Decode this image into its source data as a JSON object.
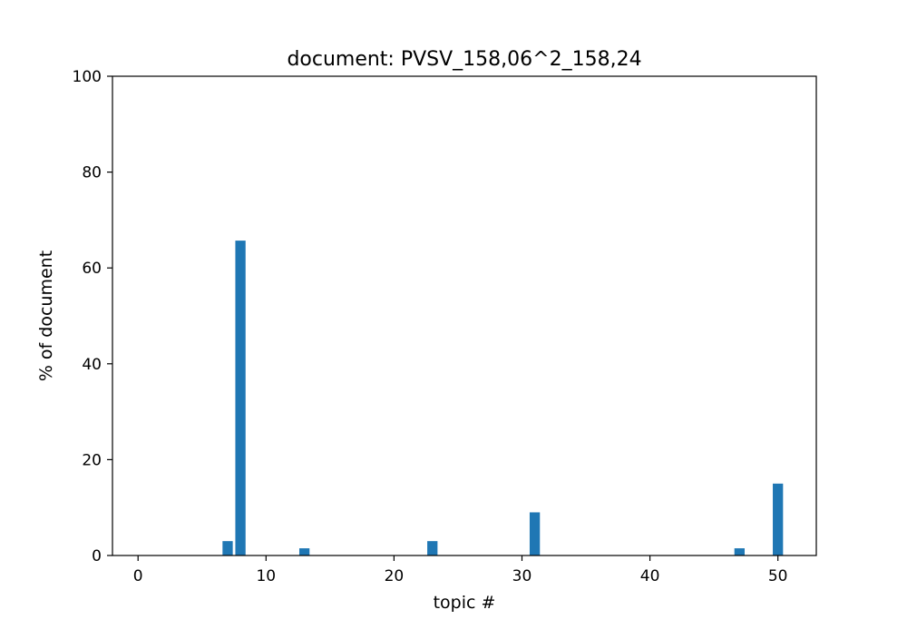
{
  "chart_data": {
    "type": "bar",
    "title": "document: PVSV_158,06^2_158,24",
    "xlabel": "topic #",
    "ylabel": "% of document",
    "xlim": [
      -2,
      53
    ],
    "ylim": [
      0,
      100
    ],
    "xticks": [
      0,
      10,
      20,
      30,
      40,
      50
    ],
    "yticks": [
      0,
      20,
      40,
      60,
      80,
      100
    ],
    "bar_color": "#1f77b4",
    "grid": false,
    "legend": "none",
    "x": [
      0,
      1,
      2,
      3,
      4,
      5,
      6,
      7,
      8,
      9,
      10,
      11,
      12,
      13,
      14,
      15,
      16,
      17,
      18,
      19,
      20,
      21,
      22,
      23,
      24,
      25,
      26,
      27,
      28,
      29,
      30,
      31,
      32,
      33,
      34,
      35,
      36,
      37,
      38,
      39,
      40,
      41,
      42,
      43,
      44,
      45,
      46,
      47,
      48,
      49,
      50
    ],
    "values": [
      0,
      0,
      0,
      0,
      0,
      0,
      0,
      3,
      65.7,
      0,
      0,
      0,
      0,
      1.5,
      0,
      0,
      0,
      0,
      0,
      0,
      0,
      0,
      0,
      3,
      0,
      0,
      0,
      0,
      0,
      0,
      0,
      9,
      0,
      0,
      0,
      0,
      0,
      0,
      0,
      0,
      0,
      0,
      0,
      0,
      0,
      0,
      0,
      1.5,
      0,
      0,
      15
    ]
  }
}
